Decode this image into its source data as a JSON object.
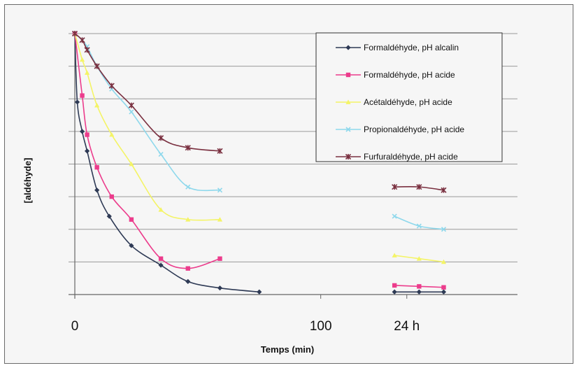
{
  "chart_data": {
    "type": "line",
    "xlabel": "Temps (min)",
    "ylabel": "[aldéhyde]",
    "x_tick_labels": [
      {
        "x": 0,
        "label": "0"
      },
      {
        "x": 100,
        "label": "100"
      },
      {
        "x": 135,
        "label": "24 h"
      }
    ],
    "xlim": [
      0,
      180
    ],
    "ylim": [
      0,
      8
    ],
    "grid": true,
    "legend_position": "top-right",
    "series": [
      {
        "name": "Formaldéhyde, pH alcalin",
        "color": "#2e3a55",
        "marker": "diamond",
        "x": [
          0,
          1,
          3,
          5,
          9,
          14,
          23,
          35,
          46,
          59,
          75
        ],
        "y": [
          8.0,
          5.9,
          5.0,
          4.4,
          3.2,
          2.4,
          1.5,
          0.9,
          0.4,
          0.2,
          0.08
        ],
        "x_24h": [
          130,
          140,
          150
        ],
        "y_24h": [
          0.08,
          0.08,
          0.08
        ]
      },
      {
        "name": "Formaldéhyde, pH acide",
        "color": "#ec3c8c",
        "marker": "square",
        "x": [
          0,
          3,
          5,
          9,
          15,
          23,
          35,
          46,
          59
        ],
        "y": [
          8.0,
          6.1,
          4.9,
          3.9,
          3.0,
          2.3,
          1.1,
          0.8,
          1.1
        ],
        "x_24h": [
          130,
          140,
          150
        ],
        "y_24h": [
          0.28,
          0.25,
          0.22
        ]
      },
      {
        "name": "Acétaldéhyde, pH acide",
        "color": "#f4f466",
        "marker": "triangle",
        "x": [
          0,
          3,
          5,
          9,
          15,
          23,
          35,
          46,
          59
        ],
        "y": [
          8.0,
          7.2,
          6.8,
          5.8,
          4.9,
          4.0,
          2.6,
          2.3,
          2.3
        ],
        "x_24h": [
          130,
          140,
          150
        ],
        "y_24h": [
          1.2,
          1.1,
          1.0
        ]
      },
      {
        "name": "Propionaldéhyde, pH acide",
        "color": "#8ed8ec",
        "marker": "x",
        "x": [
          0,
          3,
          5,
          9,
          15,
          23,
          35,
          46,
          59
        ],
        "y": [
          8.0,
          7.8,
          7.6,
          7.0,
          6.3,
          5.6,
          4.3,
          3.3,
          3.2
        ],
        "x_24h": [
          130,
          140,
          150
        ],
        "y_24h": [
          2.4,
          2.1,
          2.0
        ]
      },
      {
        "name": "Furfuraldéhyde, pH acide",
        "color": "#7a3040",
        "marker": "star",
        "x": [
          0,
          3,
          5,
          9,
          15,
          23,
          35,
          46,
          59
        ],
        "y": [
          8.0,
          7.8,
          7.5,
          7.0,
          6.4,
          5.8,
          4.8,
          4.5,
          4.4
        ],
        "x_24h": [
          130,
          140,
          150
        ],
        "y_24h": [
          3.3,
          3.3,
          3.2
        ]
      }
    ]
  }
}
